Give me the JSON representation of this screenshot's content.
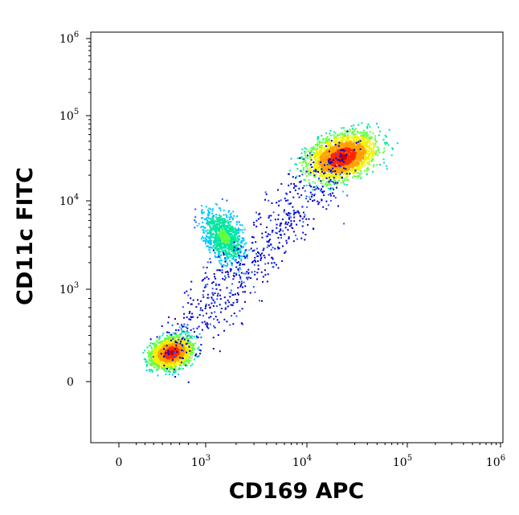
{
  "chart_data": {
    "type": "scatter",
    "title": "",
    "xlabel": "CD169 APC",
    "ylabel": "CD11c FITC",
    "x_scale": "biexponential",
    "y_scale": "biexponential",
    "xlim": [
      -300,
      1000000
    ],
    "ylim": [
      -300,
      1000000
    ],
    "x_ticks": [
      {
        "base": "0",
        "exp": "",
        "value": 0
      },
      {
        "base": "10",
        "exp": "3",
        "value": 1000
      },
      {
        "base": "10",
        "exp": "4",
        "value": 10000
      },
      {
        "base": "10",
        "exp": "5",
        "value": 100000
      },
      {
        "base": "10",
        "exp": "6",
        "value": 1000000
      }
    ],
    "y_ticks": [
      {
        "base": "0",
        "exp": "",
        "value": 0
      },
      {
        "base": "10",
        "exp": "3",
        "value": 1000
      },
      {
        "base": "10",
        "exp": "4",
        "value": 10000
      },
      {
        "base": "10",
        "exp": "5",
        "value": 100000
      },
      {
        "base": "10",
        "exp": "6",
        "value": 1000000
      }
    ],
    "colormap": [
      "#0000c8",
      "#1e5aff",
      "#00c8ff",
      "#00e6a0",
      "#64ff3c",
      "#f0f000",
      "#ffa000",
      "#ff2800",
      "#c80000"
    ],
    "populations": [
      {
        "x_center": 600,
        "y_center": 320,
        "peak_density": 1.0
      },
      {
        "x_center": 1500,
        "y_center": 4000,
        "peak_density": 0.5
      },
      {
        "x_center": 22000,
        "y_center": 33000,
        "peak_density": 1.0
      }
    ],
    "grid": false,
    "legend": "none"
  }
}
